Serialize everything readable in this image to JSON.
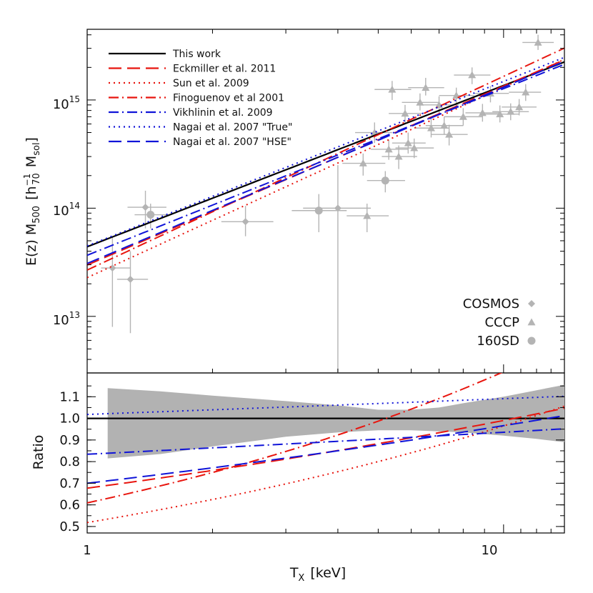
{
  "chart_data": {
    "type": "scatter",
    "xlabel_main": "T",
    "xlabel_sub": "X",
    "xlabel_unit": "[keV]",
    "top_ylabel": {
      "pre": "E(z) M",
      "sub": "500",
      "mid": "[h",
      "sup": "−1",
      "sub2": "70",
      "post": "M",
      "sub3": "sol",
      "close": "]"
    },
    "bottom_ylabel": "Ratio",
    "x_scale": "log",
    "xlim": [
      1,
      14
    ],
    "top_ylim": [
      3000000000000.0,
      4500000000000000.0
    ],
    "top_y_scale": "log",
    "bottom_ylim": [
      0.47,
      1.21
    ],
    "x_ticks": [
      {
        "value": 1,
        "label": "1"
      },
      {
        "value": 10,
        "label": "10"
      }
    ],
    "top_y_ticks": [
      {
        "value": 10000000000000.0,
        "base": "10",
        "exp": "13"
      },
      {
        "value": 100000000000000.0,
        "base": "10",
        "exp": "14"
      },
      {
        "value": 1000000000000000.0,
        "base": "10",
        "exp": "15"
      }
    ],
    "bottom_y_ticks": [
      "0.5",
      "0.6",
      "0.7",
      "0.8",
      "0.9",
      "1.0",
      "1.1"
    ],
    "relations": [
      {
        "name": "This work",
        "color": "#000000",
        "dash": "solid",
        "norm": 44000000000000.0,
        "slope": 1.49
      },
      {
        "name": "Eckmiller et al. 2011",
        "color": "#e8150e",
        "dash": "longdash",
        "norm": 29800000000000.0,
        "slope": 1.655
      },
      {
        "name": "Sun et al. 2009",
        "color": "#e8150e",
        "dash": "dot",
        "norm": 22800000000000.0,
        "slope": 1.76
      },
      {
        "name": "Finoguenov et al 2001",
        "color": "#e8150e",
        "dash": "dashdot",
        "norm": 26800000000000.0,
        "slope": 1.79
      },
      {
        "name": "Vikhlinin et al. 2009",
        "color": "#1014d8",
        "dash": "dashdot",
        "norm": 36700000000000.0,
        "slope": 1.54
      },
      {
        "name": "Nagai et al. 2007 \"True\"",
        "color": "#1014d8",
        "dash": "dot",
        "norm": 44800000000000.0,
        "slope": 1.52
      },
      {
        "name": "Nagai et al. 2007 \"HSE\"",
        "color": "#1014d8",
        "dash": "longdash",
        "norm": 30800000000000.0,
        "slope": 1.63
      }
    ],
    "ratio_band": {
      "x": [
        1.12,
        1.5,
        2.0,
        3.0,
        4.0,
        5.0,
        6.0,
        7.0,
        8.0,
        10.0,
        12.0,
        14.0
      ],
      "upper": [
        1.14,
        1.125,
        1.105,
        1.08,
        1.06,
        1.04,
        1.04,
        1.05,
        1.07,
        1.1,
        1.13,
        1.155
      ],
      "lower": [
        0.815,
        0.835,
        0.87,
        0.915,
        0.935,
        0.945,
        0.945,
        0.94,
        0.935,
        0.92,
        0.905,
        0.89
      ]
    },
    "samples": [
      {
        "name": "COSMOS",
        "marker": "diamond",
        "color": "#b4b4b4",
        "points": [
          {
            "x": 1.15,
            "y": 28000000000000.0,
            "xlo": 1.08,
            "xhi": 1.27,
            "ylo": 8000000000000.0,
            "yhi": 55000000000000.0
          },
          {
            "x": 1.27,
            "y": 22000000000000.0,
            "xlo": 1.18,
            "xhi": 1.4,
            "ylo": 7000000000000.0,
            "yhi": 40000000000000.0
          },
          {
            "x": 1.38,
            "y": 102000000000000.0,
            "xlo": 1.25,
            "xhi": 1.55,
            "ylo": 65000000000000.0,
            "yhi": 145000000000000.0
          },
          {
            "x": 2.4,
            "y": 75000000000000.0,
            "xlo": 2.1,
            "xhi": 2.8,
            "ylo": 55000000000000.0,
            "yhi": 105000000000000.0
          },
          {
            "x": 4.0,
            "y": 100000000000000.0,
            "xlo": 3.3,
            "xhi": 4.8,
            "ylo": 3000000000000.0,
            "yhi": 250000000000000.0
          }
        ]
      },
      {
        "name": "CCCP",
        "marker": "triangle",
        "color": "#b4b4b4",
        "points": [
          {
            "x": 4.6,
            "y": 260000000000000.0,
            "xlo": 4.1,
            "xhi": 5.2,
            "ylo": 200000000000000.0,
            "yhi": 320000000000000.0
          },
          {
            "x": 4.7,
            "y": 85000000000000.0,
            "xlo": 4.2,
            "xhi": 5.3,
            "ylo": 60000000000000.0,
            "yhi": 110000000000000.0
          },
          {
            "x": 4.9,
            "y": 500000000000000.0,
            "xlo": 4.4,
            "xhi": 5.4,
            "ylo": 400000000000000.0,
            "yhi": 620000000000000.0
          },
          {
            "x": 5.3,
            "y": 350000000000000.0,
            "xlo": 4.8,
            "xhi": 5.9,
            "ylo": 280000000000000.0,
            "yhi": 430000000000000.0
          },
          {
            "x": 5.4,
            "y": 1250000000000000.0,
            "xlo": 4.9,
            "xhi": 6.0,
            "ylo": 1000000000000000.0,
            "yhi": 1500000000000000.0
          },
          {
            "x": 5.6,
            "y": 300000000000000.0,
            "xlo": 5.1,
            "xhi": 6.2,
            "ylo": 230000000000000.0,
            "yhi": 380000000000000.0
          },
          {
            "x": 5.8,
            "y": 750000000000000.0,
            "xlo": 5.3,
            "xhi": 6.4,
            "ylo": 600000000000000.0,
            "yhi": 900000000000000.0
          },
          {
            "x": 5.9,
            "y": 400000000000000.0,
            "xlo": 5.4,
            "xhi": 6.5,
            "ylo": 320000000000000.0,
            "yhi": 500000000000000.0
          },
          {
            "x": 6.1,
            "y": 360000000000000.0,
            "xlo": 5.5,
            "xhi": 6.8,
            "ylo": 290000000000000.0,
            "yhi": 440000000000000.0
          },
          {
            "x": 6.3,
            "y": 950000000000000.0,
            "xlo": 5.7,
            "xhi": 7.0,
            "ylo": 800000000000000.0,
            "yhi": 1150000000000000.0
          },
          {
            "x": 6.5,
            "y": 1300000000000000.0,
            "xlo": 5.9,
            "xhi": 7.2,
            "ylo": 1100000000000000.0,
            "yhi": 1600000000000000.0
          },
          {
            "x": 6.7,
            "y": 550000000000000.0,
            "xlo": 6.1,
            "xhi": 7.4,
            "ylo": 450000000000000.0,
            "yhi": 670000000000000.0
          },
          {
            "x": 7.0,
            "y": 900000000000000.0,
            "xlo": 6.3,
            "xhi": 7.8,
            "ylo": 750000000000000.0,
            "yhi": 1080000000000000.0
          },
          {
            "x": 7.2,
            "y": 580000000000000.0,
            "xlo": 6.5,
            "xhi": 8.0,
            "ylo": 480000000000000.0,
            "yhi": 700000000000000.0
          },
          {
            "x": 7.4,
            "y": 480000000000000.0,
            "xlo": 6.7,
            "xhi": 8.2,
            "ylo": 380000000000000.0,
            "yhi": 590000000000000.0
          },
          {
            "x": 7.7,
            "y": 1100000000000000.0,
            "xlo": 7.0,
            "xhi": 8.5,
            "ylo": 900000000000000.0,
            "yhi": 1300000000000000.0
          },
          {
            "x": 8.0,
            "y": 700000000000000.0,
            "xlo": 7.2,
            "xhi": 8.9,
            "ylo": 580000000000000.0,
            "yhi": 840000000000000.0
          },
          {
            "x": 8.4,
            "y": 1700000000000000.0,
            "xlo": 7.6,
            "xhi": 9.3,
            "ylo": 1400000000000000.0,
            "yhi": 2000000000000000.0
          },
          {
            "x": 8.9,
            "y": 760000000000000.0,
            "xlo": 8.1,
            "xhi": 9.8,
            "ylo": 630000000000000.0,
            "yhi": 920000000000000.0
          },
          {
            "x": 9.3,
            "y": 1150000000000000.0,
            "xlo": 8.5,
            "xhi": 10.3,
            "ylo": 950000000000000.0,
            "yhi": 1350000000000000.0
          },
          {
            "x": 9.8,
            "y": 740000000000000.0,
            "xlo": 8.9,
            "xhi": 10.9,
            "ylo": 620000000000000.0,
            "yhi": 890000000000000.0
          },
          {
            "x": 10.4,
            "y": 780000000000000.0,
            "xlo": 9.4,
            "xhi": 11.5,
            "ylo": 650000000000000.0,
            "yhi": 930000000000000.0
          },
          {
            "x": 10.9,
            "y": 860000000000000.0,
            "xlo": 9.9,
            "xhi": 12.0,
            "ylo": 720000000000000.0,
            "yhi": 1020000000000000.0
          },
          {
            "x": 11.3,
            "y": 1180000000000000.0,
            "xlo": 10.3,
            "xhi": 12.3,
            "ylo": 980000000000000.0,
            "yhi": 1400000000000000.0
          },
          {
            "x": 12.1,
            "y": 3400000000000000.0,
            "xlo": 11.1,
            "xhi": 13.2,
            "ylo": 2900000000000000.0,
            "yhi": 4000000000000000.0
          }
        ]
      },
      {
        "name": "160SD",
        "marker": "circle",
        "color": "#b4b4b4",
        "points": [
          {
            "x": 1.42,
            "y": 87000000000000.0,
            "xlo": 1.3,
            "xhi": 1.56,
            "ylo": 65000000000000.0,
            "yhi": 110000000000000.0
          },
          {
            "x": 3.6,
            "y": 95000000000000.0,
            "xlo": 3.1,
            "xhi": 4.2,
            "ylo": 60000000000000.0,
            "yhi": 135000000000000.0
          },
          {
            "x": 5.2,
            "y": 180000000000000.0,
            "xlo": 4.7,
            "xhi": 5.8,
            "ylo": 140000000000000.0,
            "yhi": 220000000000000.0
          }
        ]
      }
    ]
  }
}
